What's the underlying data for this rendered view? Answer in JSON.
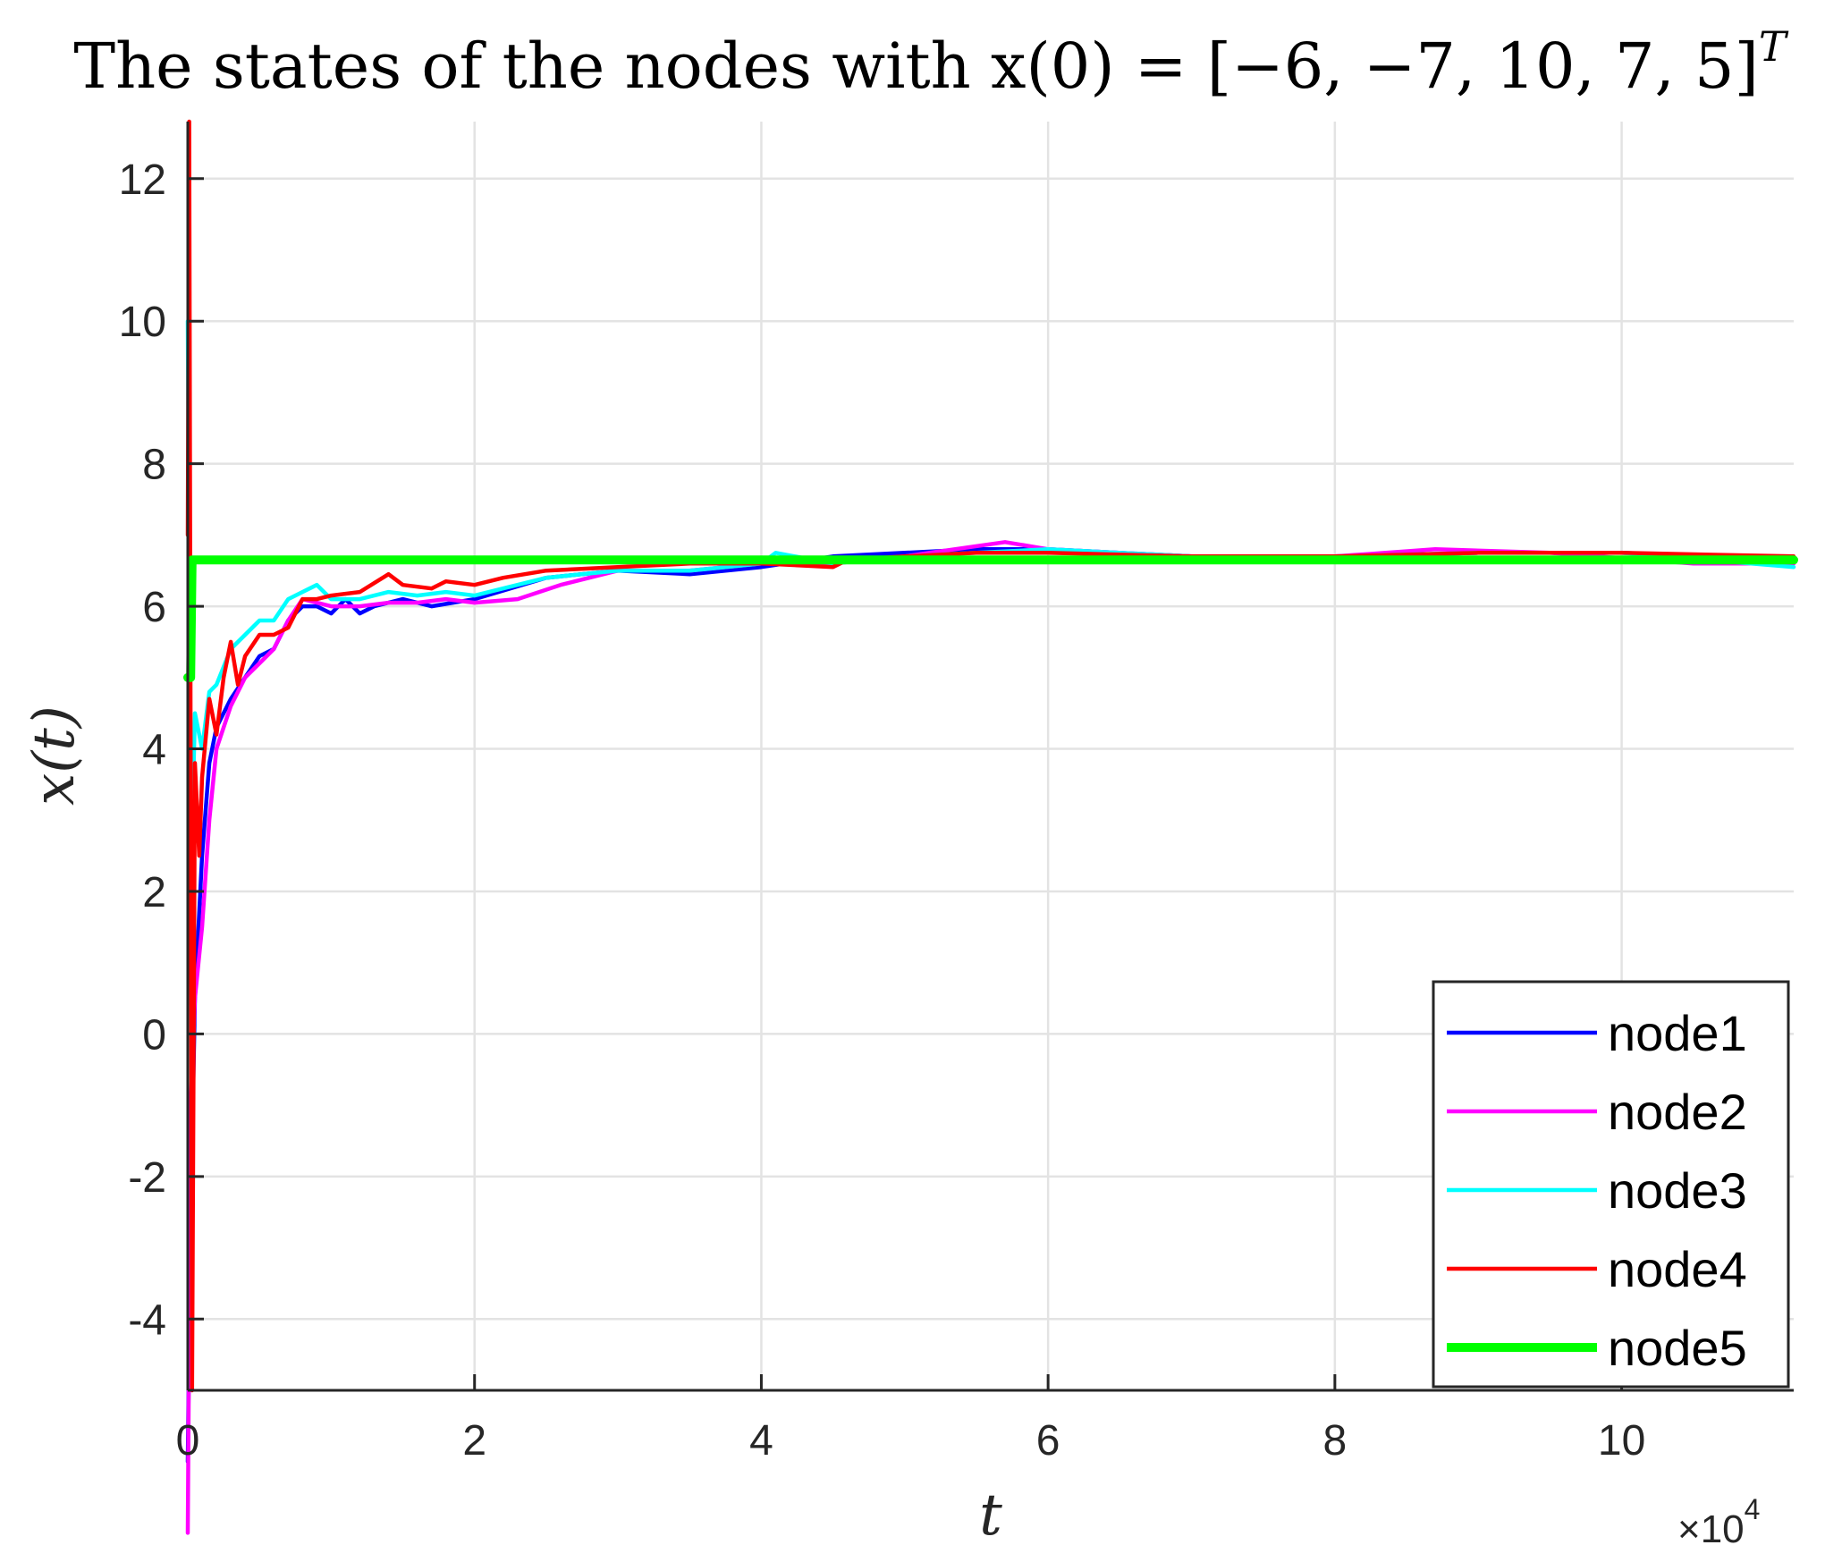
{
  "chart_data": {
    "type": "line",
    "title": "The states of the nodes with x(0) = [−6, −7, 10, 7, 5]",
    "title_superscript": "T",
    "xlabel": "t",
    "ylabel": "x(t)",
    "x_multiplier_label": "×10",
    "x_multiplier_exponent": "4",
    "xlim": [
      0,
      11.2
    ],
    "ylim": [
      -5,
      12.8
    ],
    "x_ticks": [
      0,
      2,
      4,
      6,
      8,
      10
    ],
    "x_tick_labels": [
      "0",
      "2",
      "4",
      "6",
      "8",
      "10"
    ],
    "y_ticks": [
      -4,
      -2,
      0,
      2,
      4,
      6,
      8,
      10,
      12
    ],
    "y_tick_labels": [
      "-4",
      "-2",
      "0",
      "2",
      "4",
      "6",
      "8",
      "10",
      "12"
    ],
    "grid": true,
    "legend_position": "bottom-right",
    "series": [
      {
        "name": "node1",
        "color": "#0000ff",
        "x": [
          0,
          0.02,
          0.05,
          0.1,
          0.15,
          0.2,
          0.3,
          0.4,
          0.5,
          0.6,
          0.7,
          0.8,
          0.9,
          1.0,
          1.1,
          1.2,
          1.3,
          1.5,
          1.7,
          2.0,
          2.5,
          3.0,
          3.5,
          4.0,
          4.5,
          5.0,
          5.5,
          6.0,
          7.0,
          8.0,
          9.0,
          10.0,
          11.2
        ],
        "values": [
          -6,
          -2.6,
          0.5,
          2.5,
          3.8,
          4.3,
          4.7,
          5.0,
          5.3,
          5.4,
          5.8,
          6.0,
          6.0,
          5.9,
          6.1,
          5.9,
          6.0,
          6.1,
          6.0,
          6.1,
          6.4,
          6.5,
          6.45,
          6.55,
          6.7,
          6.75,
          6.8,
          6.8,
          6.7,
          6.7,
          6.75,
          6.75,
          6.65
        ]
      },
      {
        "name": "node2",
        "color": "#ff00ff",
        "x": [
          0,
          0.02,
          0.05,
          0.1,
          0.15,
          0.2,
          0.3,
          0.4,
          0.5,
          0.6,
          0.7,
          0.8,
          0.9,
          1.0,
          1.2,
          1.4,
          1.6,
          1.8,
          2.0,
          2.3,
          2.6,
          3.0,
          3.5,
          4.0,
          4.5,
          5.0,
          5.7,
          6.0,
          7.0,
          8.0,
          8.7,
          9.5,
          10.5,
          11.2
        ],
        "values": [
          -7,
          -1.0,
          0.5,
          1.5,
          3.0,
          4.0,
          4.6,
          5.0,
          5.2,
          5.4,
          5.8,
          6.1,
          6.05,
          6.0,
          6.0,
          6.05,
          6.05,
          6.1,
          6.05,
          6.1,
          6.3,
          6.5,
          6.5,
          6.6,
          6.6,
          6.7,
          6.9,
          6.8,
          6.7,
          6.7,
          6.8,
          6.75,
          6.6,
          6.6
        ]
      },
      {
        "name": "node3",
        "color": "#00ffff",
        "x": [
          0,
          0.02,
          0.05,
          0.1,
          0.15,
          0.2,
          0.3,
          0.4,
          0.5,
          0.6,
          0.7,
          0.8,
          0.9,
          1.0,
          1.2,
          1.4,
          1.6,
          1.8,
          2.0,
          2.5,
          3.0,
          3.5,
          4.0,
          4.1,
          4.5,
          5.0,
          5.5,
          6.0,
          7.0,
          8.0,
          9.0,
          10.0,
          11.2
        ],
        "values": [
          10,
          2.0,
          4.5,
          4.0,
          4.8,
          4.9,
          5.4,
          5.6,
          5.8,
          5.8,
          6.1,
          6.2,
          6.3,
          6.1,
          6.1,
          6.2,
          6.15,
          6.2,
          6.15,
          6.4,
          6.5,
          6.5,
          6.6,
          6.75,
          6.6,
          6.7,
          6.75,
          6.8,
          6.7,
          6.7,
          6.75,
          6.75,
          6.55
        ]
      },
      {
        "name": "node4",
        "color": "#ff0000",
        "x": [
          0,
          0.01,
          0.03,
          0.05,
          0.08,
          0.1,
          0.15,
          0.2,
          0.25,
          0.3,
          0.35,
          0.4,
          0.5,
          0.6,
          0.7,
          0.8,
          0.9,
          1.0,
          1.2,
          1.4,
          1.5,
          1.7,
          1.8,
          2.0,
          2.2,
          2.5,
          3.0,
          3.5,
          4.0,
          4.5,
          4.6,
          5.0,
          5.5,
          6.0,
          7.0,
          8.0,
          9.0,
          10.0,
          11.2
        ],
        "values": [
          7,
          12.8,
          -5,
          3.8,
          2.5,
          3.6,
          4.7,
          4.2,
          5.0,
          5.5,
          4.9,
          5.3,
          5.6,
          5.6,
          5.7,
          6.1,
          6.1,
          6.15,
          6.2,
          6.45,
          6.3,
          6.25,
          6.35,
          6.3,
          6.4,
          6.5,
          6.55,
          6.6,
          6.6,
          6.55,
          6.65,
          6.7,
          6.75,
          6.75,
          6.7,
          6.7,
          6.75,
          6.75,
          6.7
        ]
      },
      {
        "name": "node5",
        "color": "#00ff00",
        "x": [
          0,
          0.02,
          0.03,
          11.2
        ],
        "values": [
          5,
          5,
          6.65,
          6.65
        ]
      }
    ]
  }
}
